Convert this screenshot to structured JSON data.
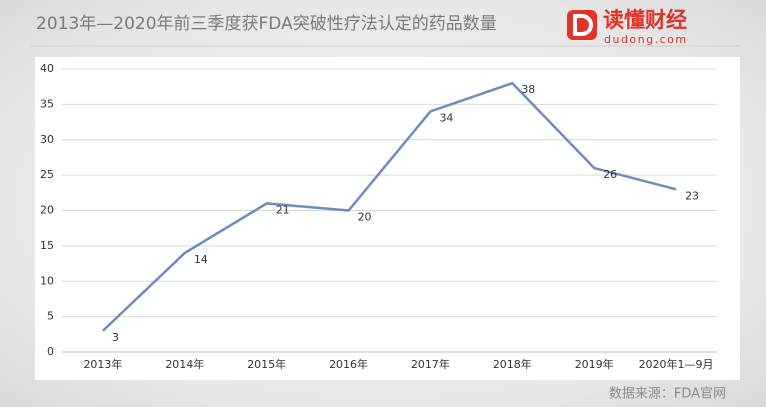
{
  "chart_data": {
    "type": "line",
    "title": "2013年—2020年前三季度获FDA突破性疗法认定的药品数量",
    "categories": [
      "2013年",
      "2014年",
      "2015年",
      "2016年",
      "2017年",
      "2018年",
      "2019年",
      "2020年1—9月"
    ],
    "series": [
      {
        "name": "获FDA突破性疗法认定的药品数量",
        "color": "#6a8ebf",
        "values": [
          3,
          14,
          21,
          20,
          34,
          38,
          26,
          23
        ]
      }
    ],
    "ylim": [
      0,
      40
    ],
    "yticks": [
      0,
      5,
      10,
      15,
      20,
      25,
      30,
      35,
      40
    ],
    "grid": true,
    "legend": false,
    "source": "数据来源：FDA官网"
  },
  "brand": {
    "name": "读懂财经",
    "site": "dudong.com"
  }
}
